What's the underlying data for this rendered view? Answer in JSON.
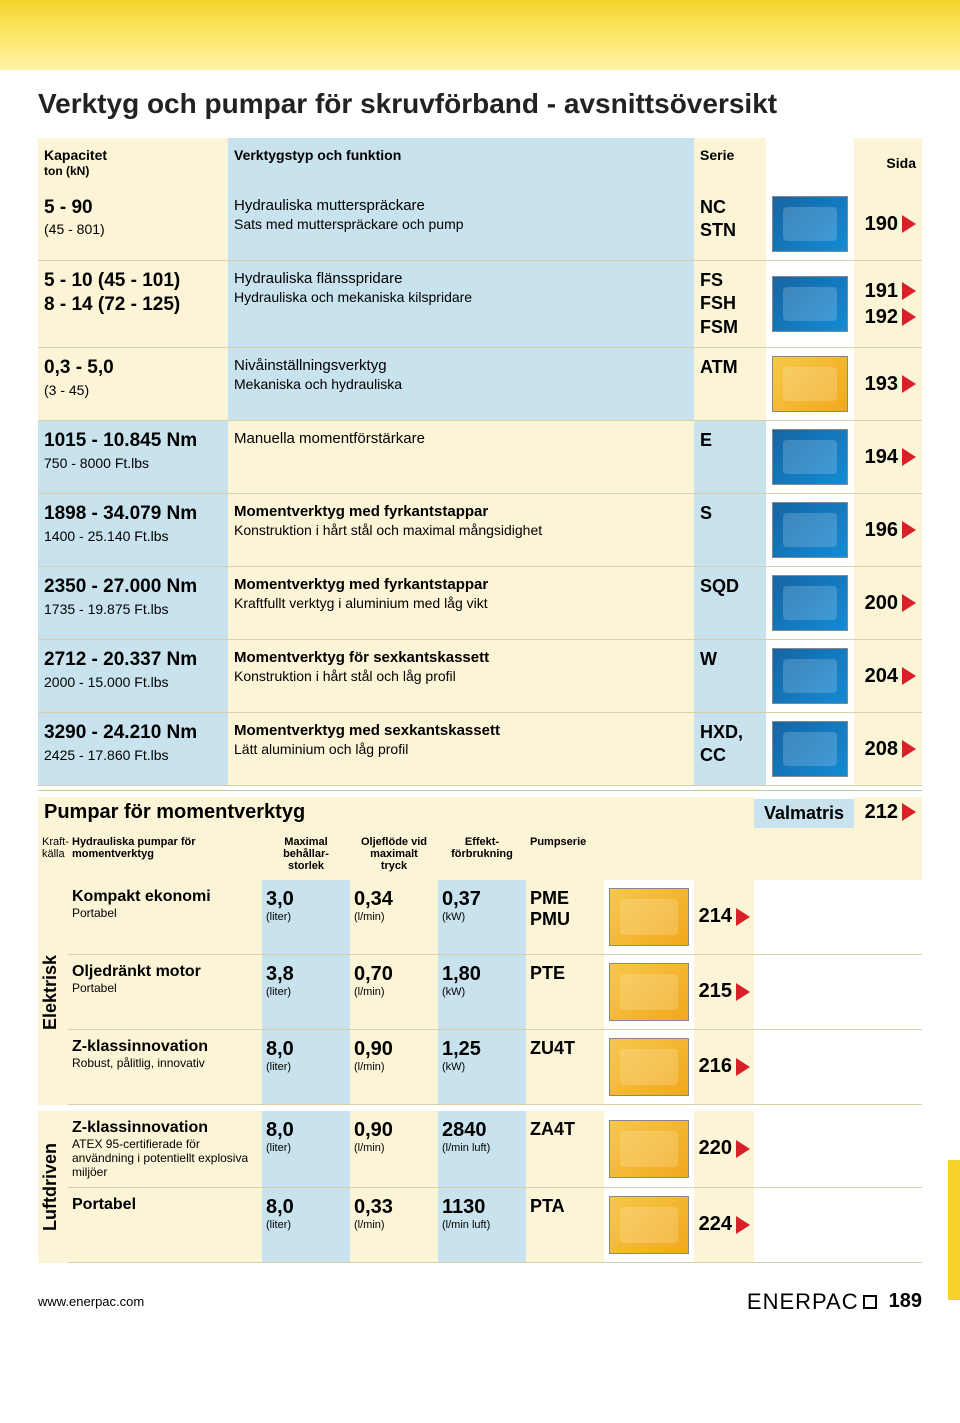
{
  "page": {
    "title": "Verktyg och pumpar för skruvförband - avsnittsöversikt",
    "number": "189",
    "url": "www.enerpac.com",
    "logo_text": "ENERPAC"
  },
  "colors": {
    "cream": "#fbf4d6",
    "blue": "#c8e3ee",
    "white": "#ffffff",
    "arrow": "#d82028",
    "band_top": "#f6d22b",
    "thumb_blue": "#1565a3",
    "thumb_yellow": "#f7c84a"
  },
  "headers": {
    "capacity": "Kapacitet",
    "capacity_sub": "ton (kN)",
    "function": "Verktygstyp och funktion",
    "series": "Serie",
    "page": "Sida"
  },
  "rows": [
    {
      "cap_main": "5 - 90",
      "cap_sub": "(45 - 801)",
      "func_lines": [
        "Hydrauliska mutterspräckare",
        "Sats med mutterspräckare och pump"
      ],
      "series": "NC\nSTN",
      "page": "190",
      "bg": [
        "cream",
        "blue",
        "cream",
        "white",
        "cream"
      ],
      "thumb": "blue"
    },
    {
      "cap_main": "5 - 10  (45 - 101)",
      "cap_sub": "8 - 14  (72 - 125)",
      "cap_main_bold_both": true,
      "func_lines": [
        "Hydrauliska flänsspridare",
        "Hydrauliska och mekaniska kilspridare"
      ],
      "series": "FS\nFSH\nFSM",
      "page": "191\n192",
      "bg": [
        "cream",
        "blue",
        "cream",
        "white",
        "cream"
      ],
      "thumb": "blue"
    },
    {
      "cap_main": "0,3 - 5,0",
      "cap_sub": "(3 - 45)",
      "func_lines": [
        "Nivåinställningsverktyg",
        "Mekaniska och hydrauliska"
      ],
      "series": "ATM",
      "page": "193",
      "bg": [
        "cream",
        "blue",
        "cream",
        "white",
        "cream"
      ],
      "thumb": "yellow"
    },
    {
      "cap_main": "1015 - 10.845 Nm",
      "cap_sub": "750 - 8000 Ft.lbs",
      "func_lines": [
        "Manuella momentförstärkare"
      ],
      "series": "E",
      "page": "194",
      "bg": [
        "blue",
        "cream",
        "blue",
        "white",
        "cream"
      ],
      "thumb": "blue"
    },
    {
      "cap_main": "1898 - 34.079 Nm",
      "cap_sub": "1400 - 25.140 Ft.lbs",
      "func_lines": [
        "Momentverktyg med fyrkantstappar",
        "Konstruktion i hårt stål och maximal mångsidighet"
      ],
      "func_bold_first": true,
      "series": "S",
      "page": "196",
      "bg": [
        "blue",
        "cream",
        "blue",
        "white",
        "cream"
      ],
      "thumb": "blue"
    },
    {
      "cap_main": "2350 - 27.000 Nm",
      "cap_sub": "1735 - 19.875 Ft.lbs",
      "func_lines": [
        "Momentverktyg med fyrkantstappar",
        "Kraftfullt verktyg i aluminium med låg vikt"
      ],
      "func_bold_first": true,
      "series": "SQD",
      "page": "200",
      "bg": [
        "blue",
        "cream",
        "blue",
        "white",
        "cream"
      ],
      "thumb": "blue"
    },
    {
      "cap_main": "2712 - 20.337 Nm",
      "cap_sub": "2000 - 15.000 Ft.lbs",
      "func_lines": [
        "Momentverktyg för sexkantskassett",
        "Konstruktion i hårt stål och låg profil"
      ],
      "func_bold_first": true,
      "series": "W",
      "page": "204",
      "bg": [
        "blue",
        "cream",
        "blue",
        "white",
        "cream"
      ],
      "thumb": "blue"
    },
    {
      "cap_main": "3290 - 24.210 Nm",
      "cap_sub": "2425 - 17.860 Ft.lbs",
      "func_lines": [
        "Momentverktyg med sexkantskassett",
        "Lätt aluminium och låg profil"
      ],
      "func_bold_first": true,
      "series": "HXD,\nCC",
      "page": "208",
      "bg": [
        "blue",
        "cream",
        "blue",
        "white",
        "cream"
      ],
      "thumb": "blue"
    }
  ],
  "pumps": {
    "title": "Pumpar för momentverktyg",
    "valmatris": "Valmatris",
    "valmatris_page": "212",
    "headers": {
      "source": "Kraft-\nkälla",
      "pump": "Hydrauliska pumpar för\nmomentverktyg",
      "reservoir": "Maximal\nbehållar-\nstorlek",
      "flow": "Oljeflöde vid\nmaximalt\ntryck",
      "power": "Effekt-\nförbrukning",
      "series": "Pumpserie"
    },
    "groups": [
      {
        "label": "Elektrisk",
        "rows": [
          {
            "name": "Kompakt ekonomi",
            "sub": "Portabel",
            "reservoir": "3,0",
            "reservoir_unit": "(liter)",
            "flow": "0,34",
            "flow_unit": "(l/min)",
            "power": "0,37",
            "power_unit": "(kW)",
            "series": "PME\nPMU",
            "page": "214",
            "thumb": "yellow"
          },
          {
            "name": "Oljedränkt motor",
            "sub": "Portabel",
            "reservoir": "3,8",
            "reservoir_unit": "(liter)",
            "flow": "0,70",
            "flow_unit": "(l/min)",
            "power": "1,80",
            "power_unit": "(kW)",
            "series": "PTE",
            "page": "215",
            "thumb": "yellow"
          },
          {
            "name": "Z-klassinnovation",
            "sub": "Robust, pålitlig, innovativ",
            "reservoir": "8,0",
            "reservoir_unit": "(liter)",
            "flow": "0,90",
            "flow_unit": "(l/min)",
            "power": "1,25",
            "power_unit": "(kW)",
            "series": "ZU4T",
            "page": "216",
            "thumb": "yellow"
          }
        ]
      },
      {
        "label": "Luftdriven",
        "rows": [
          {
            "name": "Z-klassinnovation",
            "sub": "ATEX 95-certifierade för användning i potentiellt explosiva miljöer",
            "reservoir": "8,0",
            "reservoir_unit": "(liter)",
            "flow": "0,90",
            "flow_unit": "(l/min)",
            "power": "2840",
            "power_unit": "(l/min luft)",
            "series": "ZA4T",
            "page": "220",
            "thumb": "yellow"
          },
          {
            "name": "Portabel",
            "sub": "",
            "reservoir": "8,0",
            "reservoir_unit": "(liter)",
            "flow": "0,33",
            "flow_unit": "(l/min)",
            "power": "1130",
            "power_unit": "(l/min luft)",
            "series": "PTA",
            "page": "224",
            "thumb": "yellow"
          }
        ]
      }
    ]
  }
}
